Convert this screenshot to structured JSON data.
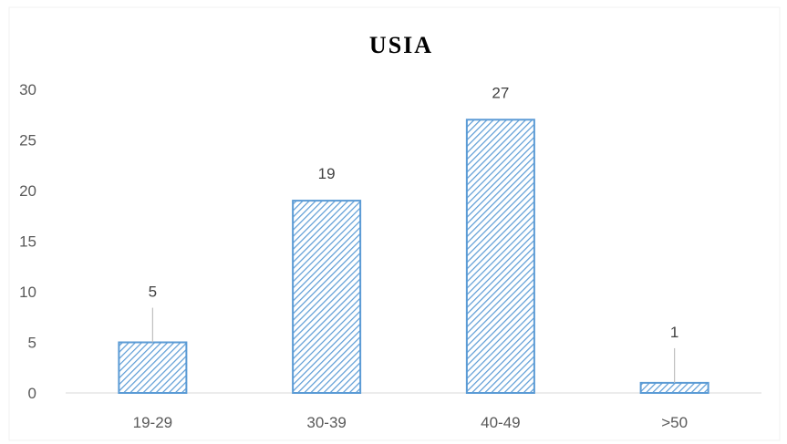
{
  "chart_data": {
    "type": "bar",
    "title": "USIA",
    "categories": [
      "19-29",
      "30-39",
      "40-49",
      ">50"
    ],
    "values": [
      5,
      19,
      27,
      1
    ],
    "data_labels": [
      "5",
      "19",
      "27",
      "1"
    ],
    "y_ticks": [
      "0",
      "5",
      "10",
      "15",
      "20",
      "25",
      "30"
    ],
    "ylim": [
      0,
      30
    ],
    "grid": false,
    "legend": "none",
    "bar_fill_pattern": "diagonal-hatch",
    "bar_color": "#5b9bd5",
    "leader_line_color": "#bfbfbf",
    "axis_line_color": "#d9d9d9"
  }
}
